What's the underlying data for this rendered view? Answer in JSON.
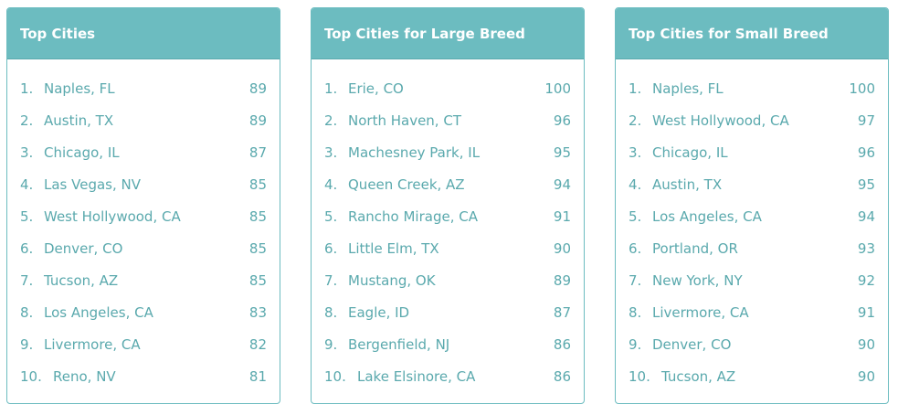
{
  "cards": [
    {
      "title": "Top Cities",
      "rows": [
        {
          "rank": "1.",
          "city": "Naples, FL",
          "score": "89"
        },
        {
          "rank": "2.",
          "city": "Austin, TX",
          "score": "89"
        },
        {
          "rank": "3.",
          "city": "Chicago, IL",
          "score": "87"
        },
        {
          "rank": "4.",
          "city": "Las Vegas, NV",
          "score": "85"
        },
        {
          "rank": "5.",
          "city": "West Hollywood, CA",
          "score": "85"
        },
        {
          "rank": "6.",
          "city": "Denver, CO",
          "score": "85"
        },
        {
          "rank": "7.",
          "city": "Tucson, AZ",
          "score": "85"
        },
        {
          "rank": "8.",
          "city": "Los Angeles, CA",
          "score": "83"
        },
        {
          "rank": "9.",
          "city": "Livermore, CA",
          "score": "82"
        },
        {
          "rank": "10.",
          "city": "Reno, NV",
          "score": "81"
        }
      ]
    },
    {
      "title": "Top Cities for Large Breed",
      "rows": [
        {
          "rank": "1.",
          "city": "Erie, CO",
          "score": "100"
        },
        {
          "rank": "2.",
          "city": "North Haven, CT",
          "score": "96"
        },
        {
          "rank": "3.",
          "city": "Machesney Park, IL",
          "score": "95"
        },
        {
          "rank": "4.",
          "city": "Queen Creek, AZ",
          "score": "94"
        },
        {
          "rank": "5.",
          "city": "Rancho Mirage, CA",
          "score": "91"
        },
        {
          "rank": "6.",
          "city": "Little Elm, TX",
          "score": "90"
        },
        {
          "rank": "7.",
          "city": "Mustang, OK",
          "score": "89"
        },
        {
          "rank": "8.",
          "city": "Eagle, ID",
          "score": "87"
        },
        {
          "rank": "9.",
          "city": "Bergenfield, NJ",
          "score": "86"
        },
        {
          "rank": "10.",
          "city": "Lake Elsinore, CA",
          "score": "86"
        }
      ]
    },
    {
      "title": "Top Cities for Small Breed",
      "rows": [
        {
          "rank": "1.",
          "city": "Naples, FL",
          "score": "100"
        },
        {
          "rank": "2.",
          "city": "West Hollywood, CA",
          "score": "97"
        },
        {
          "rank": "3.",
          "city": "Chicago, IL",
          "score": "96"
        },
        {
          "rank": "4.",
          "city": "Austin, TX",
          "score": "95"
        },
        {
          "rank": "5.",
          "city": "Los Angeles, CA",
          "score": "94"
        },
        {
          "rank": "6.",
          "city": "Portland, OR",
          "score": "93"
        },
        {
          "rank": "7.",
          "city": "New York, NY",
          "score": "92"
        },
        {
          "rank": "8.",
          "city": "Livermore, CA",
          "score": "91"
        },
        {
          "rank": "9.",
          "city": "Denver, CO",
          "score": "90"
        },
        {
          "rank": "10.",
          "city": "Tucson, AZ",
          "score": "90"
        }
      ]
    }
  ]
}
